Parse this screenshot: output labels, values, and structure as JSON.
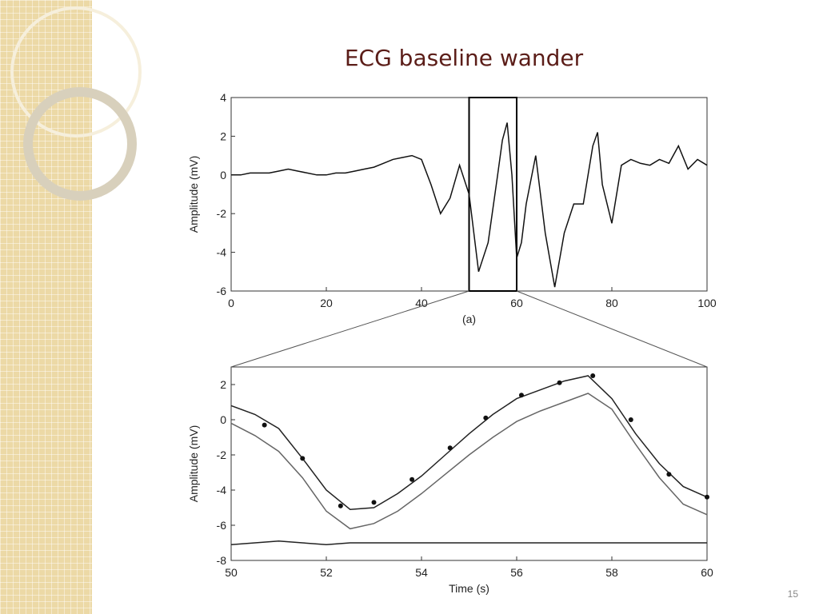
{
  "slide_title": "ECG baseline wander",
  "page_number": "15",
  "chart_data": [
    {
      "type": "line",
      "xlabel": "(a)",
      "ylabel": "Amplitude (mV)",
      "xlim": [
        0,
        100
      ],
      "ylim": [
        -6,
        4
      ],
      "xticks": [
        0,
        20,
        40,
        60,
        80,
        100
      ],
      "yticks": [
        -6,
        -4,
        -2,
        0,
        2,
        4
      ],
      "highlight": [
        50,
        60
      ],
      "series": [
        {
          "color": "#111111",
          "x": [
            0,
            2,
            4,
            6,
            8,
            10,
            12,
            14,
            16,
            18,
            20,
            22,
            24,
            26,
            28,
            30,
            32,
            34,
            36,
            38,
            40,
            42,
            44,
            46,
            48,
            50,
            52,
            54,
            56,
            57,
            58,
            59,
            60,
            61,
            62,
            64,
            66,
            68,
            70,
            72,
            74,
            76,
            77,
            78,
            80,
            82,
            84,
            86,
            88,
            90,
            92,
            94,
            96,
            98,
            100
          ],
          "values": [
            0,
            0,
            0.1,
            0.1,
            0.1,
            0.2,
            0.3,
            0.2,
            0.1,
            0,
            0,
            0.1,
            0.1,
            0.2,
            0.3,
            0.4,
            0.6,
            0.8,
            0.9,
            1.0,
            0.8,
            -0.5,
            -2.0,
            -1.2,
            0.5,
            -1.0,
            -5.0,
            -3.5,
            0,
            1.8,
            2.7,
            0,
            -4.3,
            -3.5,
            -1.5,
            1.0,
            -3.0,
            -5.8,
            -3.0,
            -1.5,
            -1.5,
            1.5,
            2.2,
            -0.5,
            -2.5,
            0.5,
            0.8,
            0.6,
            0.5,
            0.8,
            0.6,
            1.5,
            0.3,
            0.8,
            0.5
          ]
        }
      ]
    },
    {
      "type": "line",
      "xlabel": "Time (s)",
      "ylabel": "Amplitude (mV)",
      "xlim": [
        50,
        60
      ],
      "ylim": [
        -8,
        3
      ],
      "xticks": [
        50,
        52,
        54,
        56,
        58,
        60
      ],
      "yticks": [
        -8,
        -6,
        -4,
        -2,
        0,
        2
      ],
      "series": [
        {
          "color": "#222222",
          "x": [
            50,
            50.5,
            51,
            51.5,
            52,
            52.5,
            53,
            53.5,
            54,
            54.5,
            55,
            55.5,
            56,
            56.5,
            57,
            57.5,
            58,
            58.5,
            59,
            59.5,
            60
          ],
          "values": [
            0.8,
            0.3,
            -0.5,
            -2.2,
            -4.0,
            -5.1,
            -5.0,
            -4.2,
            -3.2,
            -2.0,
            -0.8,
            0.3,
            1.2,
            1.7,
            2.2,
            2.5,
            1.2,
            -0.8,
            -2.5,
            -3.8,
            -4.4
          ]
        },
        {
          "color": "#666666",
          "x": [
            50,
            50.5,
            51,
            51.5,
            52,
            52.5,
            53,
            53.5,
            54,
            54.5,
            55,
            55.5,
            56,
            56.5,
            57,
            57.5,
            58,
            58.5,
            59,
            59.5,
            60
          ],
          "values": [
            -0.2,
            -0.9,
            -1.8,
            -3.3,
            -5.2,
            -6.2,
            -5.9,
            -5.2,
            -4.2,
            -3.1,
            -2.0,
            -1.0,
            -0.1,
            0.5,
            1.0,
            1.5,
            0.6,
            -1.4,
            -3.3,
            -4.8,
            -5.4
          ]
        },
        {
          "color": "#222222",
          "x": [
            50,
            50.5,
            51,
            51.5,
            52,
            52.5,
            53,
            53.5,
            54,
            54.5,
            55,
            55.5,
            56,
            56.5,
            57,
            57.5,
            58,
            58.5,
            59,
            59.5,
            60
          ],
          "values": [
            -7.1,
            -7.0,
            -6.9,
            -7.0,
            -7.1,
            -7.0,
            -7.0,
            -7.0,
            -7.0,
            -7.0,
            -7.0,
            -7.0,
            -7.0,
            -7.0,
            -7.0,
            -7.0,
            -7.0,
            -7.0,
            -7.0,
            -7.0,
            -7.0
          ]
        },
        {
          "color": "#111111",
          "markers": true,
          "x": [
            50.7,
            51.5,
            52.3,
            53,
            53.8,
            54.6,
            55.35,
            56.1,
            56.9,
            57.6,
            58.4,
            59.2,
            60
          ],
          "values": [
            -0.3,
            -2.2,
            -4.9,
            -4.7,
            -3.4,
            -1.6,
            0.1,
            1.4,
            2.1,
            2.5,
            0,
            -3.1,
            -4.4
          ]
        }
      ]
    }
  ]
}
